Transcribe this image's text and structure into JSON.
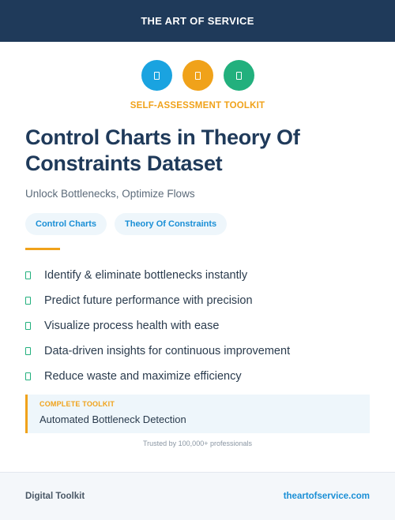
{
  "header": {
    "title": "THE ART OF SERVICE"
  },
  "icons": [
    {
      "name": "blue-icon",
      "color": "#1aa3e0"
    },
    {
      "name": "orange-icon",
      "color": "#f0a21a"
    },
    {
      "name": "green-icon",
      "color": "#22b07d"
    }
  ],
  "kicker": {
    "text": "SELF-ASSESSMENT TOOLKIT",
    "color": "#f0a21a"
  },
  "title": {
    "line1": "Control Charts in Theory Of",
    "line2": "Constraints Dataset"
  },
  "subtitle": "Unlock Bottlenecks, Optimize Flows",
  "tags": [
    "Control Charts",
    "Theory Of Constraints"
  ],
  "features": [
    "Identify & eliminate bottlenecks instantly",
    "Predict future performance with precision",
    "Visualize process health with ease",
    "Data-driven insights for continuous improvement",
    "Reduce waste and maximize efficiency"
  ],
  "callout": {
    "label": "COMPLETE TOOLKIT",
    "value": "Automated Bottleneck Detection"
  },
  "trust": "Trusted by 100,000+ professionals",
  "footer": {
    "left": "Digital Toolkit",
    "right": "theartofservice.com"
  }
}
